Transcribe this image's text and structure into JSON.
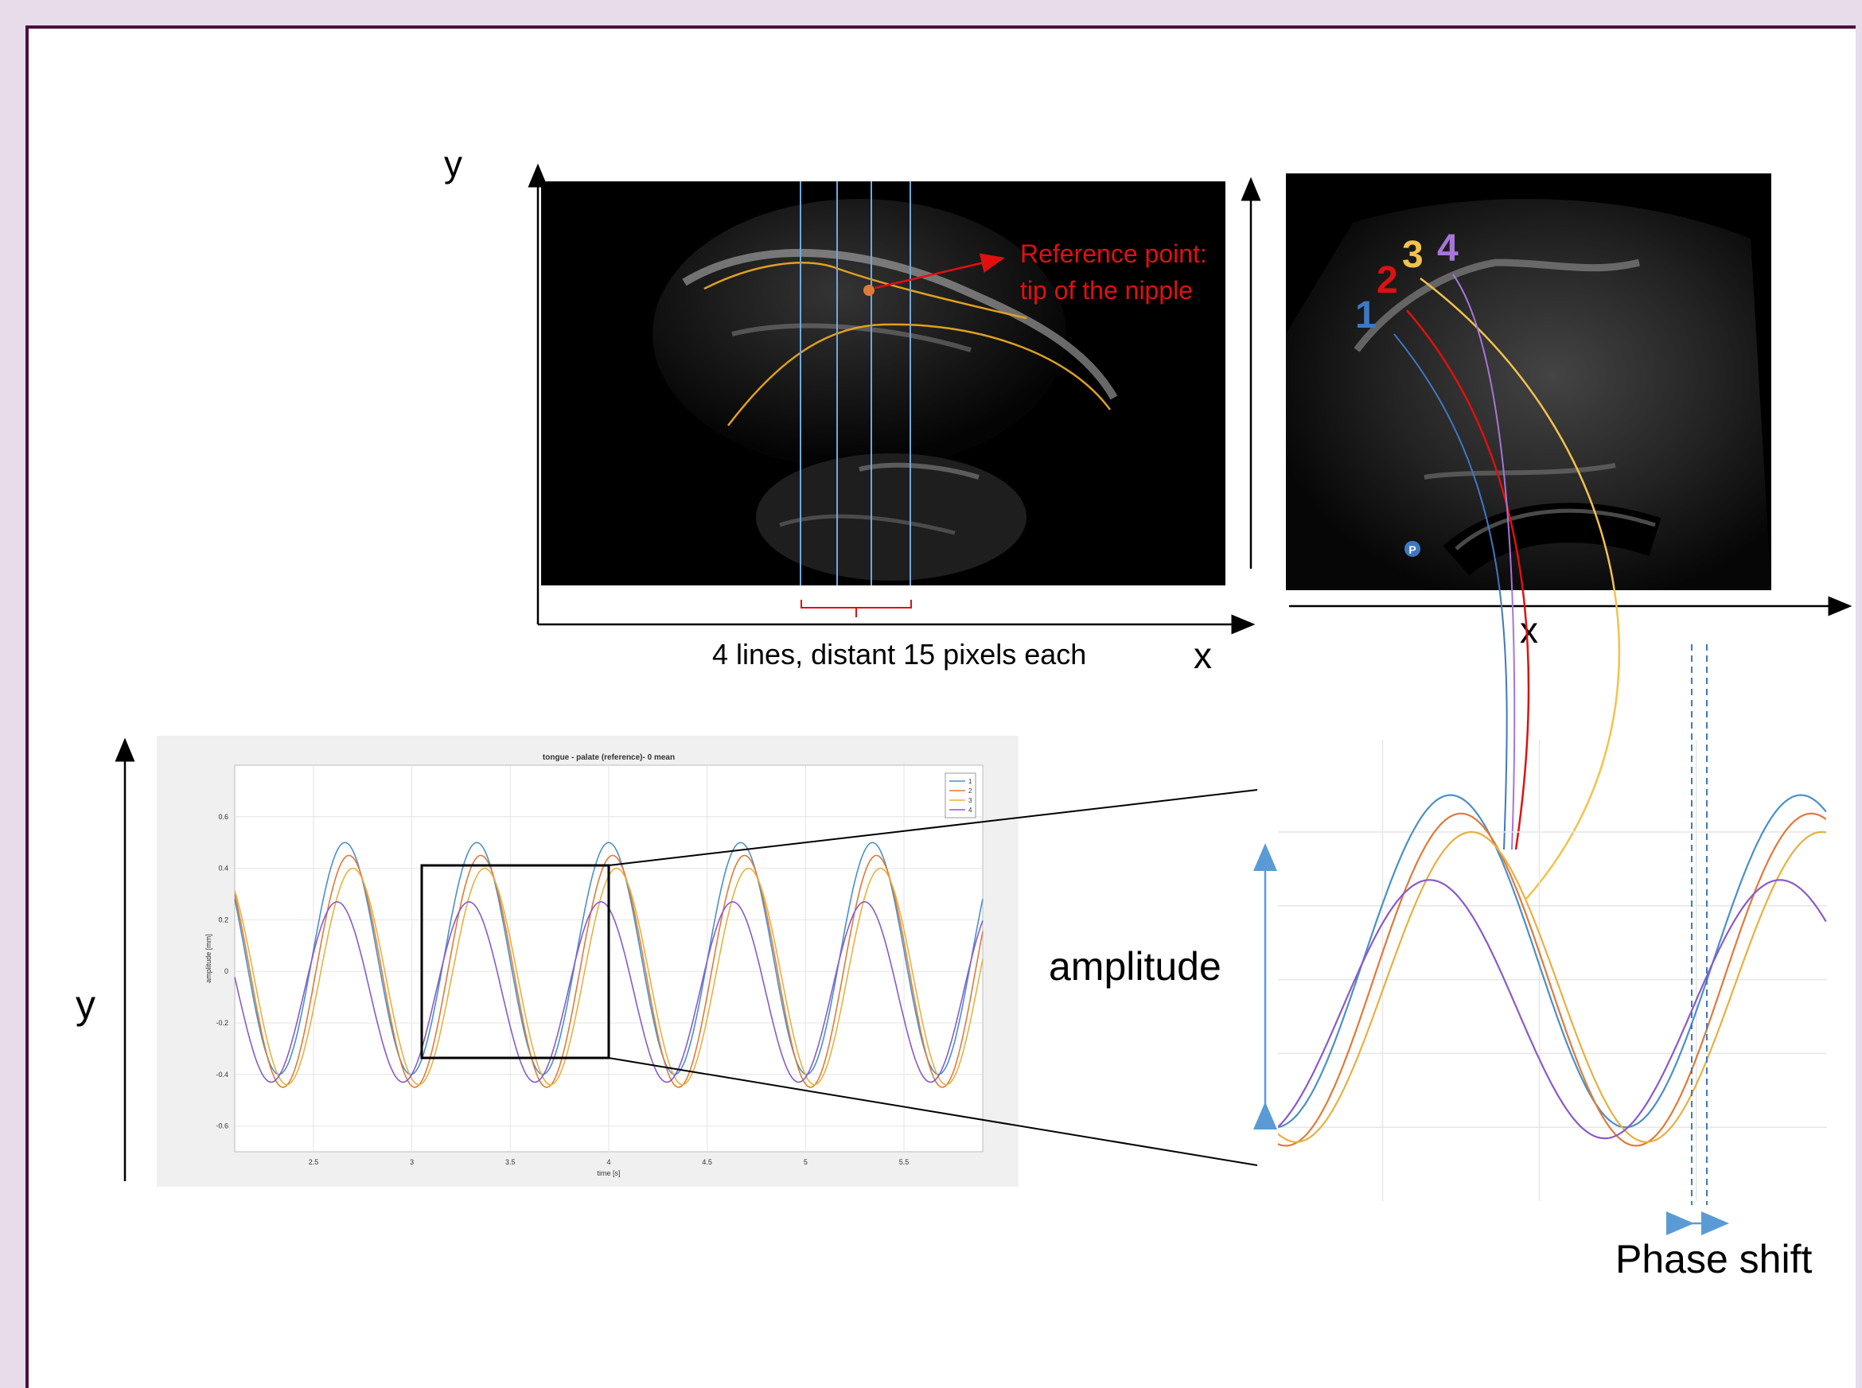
{
  "top_panel": {
    "y_label": "y",
    "x_label": "x",
    "reference_line1": "Reference point:",
    "reference_line2": "tip of the nipple",
    "lines_caption": "4 lines, distant 15 pixels each"
  },
  "right_panel": {
    "x_label": "x",
    "line_numbers": [
      {
        "label": "1",
        "color": "#3f78c2"
      },
      {
        "label": "2",
        "color": "#e01010"
      },
      {
        "label": "3",
        "color": "#f3c24a"
      },
      {
        "label": "4",
        "color": "#a675d9"
      }
    ],
    "probe_marker": "P"
  },
  "annotations": {
    "amplitude": "amplitude",
    "phase_shift": "Phase shift",
    "left_y_label": "y"
  },
  "chart_data": {
    "type": "line",
    "title": "tongue - palate (reference)- 0 mean",
    "xlabel": "time [s]",
    "ylabel": "amplitude [mm]",
    "xlim": [
      2.1,
      5.9
    ],
    "ylim": [
      -0.7,
      0.8
    ],
    "x_ticks": [
      "2.5",
      "3",
      "3.5",
      "4",
      "4.5",
      "5",
      "5.5"
    ],
    "y_ticks": [
      "0.6",
      "0.4",
      "0.2",
      "0",
      "-0.2",
      "-0.4",
      "-0.6"
    ],
    "grid": true,
    "legend_position": "top-right",
    "legend": [
      "1",
      "2",
      "3",
      "4"
    ],
    "series": [
      {
        "name": "1",
        "color": "#4a90c8",
        "amplitude": 0.45,
        "period": 0.67,
        "peak_time": 2.66,
        "offset": 0.05
      },
      {
        "name": "2",
        "color": "#e07a3a",
        "amplitude": 0.45,
        "period": 0.67,
        "peak_time": 2.68,
        "offset": 0.0
      },
      {
        "name": "3",
        "color": "#e8b040",
        "amplitude": 0.42,
        "period": 0.67,
        "peak_time": 2.7,
        "offset": -0.02
      },
      {
        "name": "4",
        "color": "#8a5ac8",
        "amplitude": 0.35,
        "period": 0.67,
        "peak_time": 2.62,
        "offset": -0.08
      }
    ]
  },
  "colors": {
    "frame_border": "#4b0f3f",
    "background": "#e6dcea",
    "reference_red": "#e01010",
    "contour_orange": "#e0a020",
    "scan_line_blue": "#6fa8dc",
    "amplitude_arrow": "#5b9bd5"
  }
}
